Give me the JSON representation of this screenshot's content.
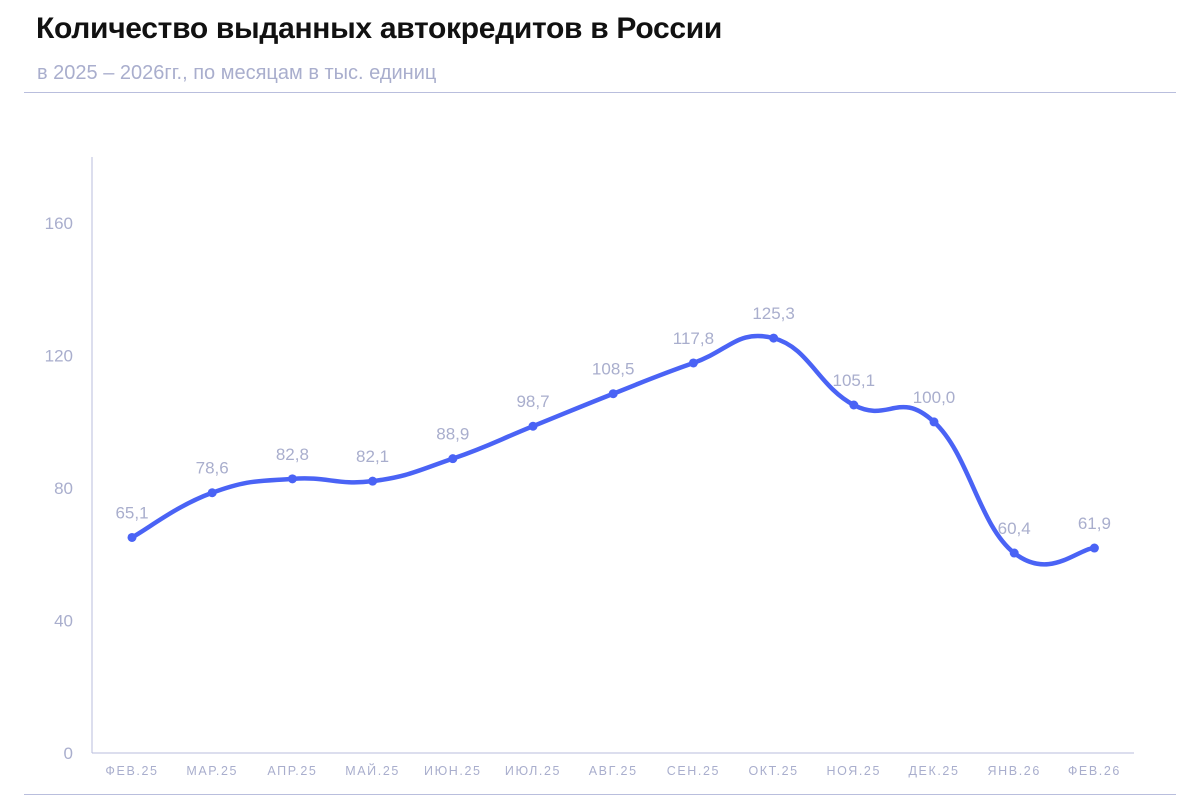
{
  "header": {
    "title": "Количество выданных автокредитов в России",
    "subtitle": "в 2025 – 2026гг., по месяцам в тыс. единиц"
  },
  "colors": {
    "line": "#4a63f5",
    "axis": "#b9bedd",
    "text_muted": "#a9aecd",
    "title": "#111111"
  },
  "chart_data": {
    "type": "line",
    "title": "Количество выданных автокредитов в России",
    "subtitle": "в 2025 – 2026гг., по месяцам в тыс. единиц",
    "categories": [
      "ФЕВ.25",
      "МАР.25",
      "АПР.25",
      "МАЙ.25",
      "ИЮН.25",
      "ИЮЛ.25",
      "АВГ.25",
      "СЕН.25",
      "ОКТ.25",
      "НОЯ.25",
      "ДЕК.25",
      "ЯНВ.26",
      "ФЕВ.26"
    ],
    "values": [
      65.1,
      78.6,
      82.8,
      82.1,
      88.9,
      98.7,
      108.5,
      117.8,
      125.3,
      105.1,
      100.0,
      60.4,
      61.9
    ],
    "value_labels": [
      "65,1",
      "78,6",
      "82,8",
      "82,1",
      "88,9",
      "98,7",
      "108,5",
      "117,8",
      "125,3",
      "105,1",
      "100,0",
      "60,4",
      "61,9"
    ],
    "y_ticks": [
      "0",
      "40",
      "80",
      "120",
      "160"
    ],
    "ylim": [
      0,
      180
    ],
    "grid": false,
    "smooth": true,
    "legend": "none"
  }
}
